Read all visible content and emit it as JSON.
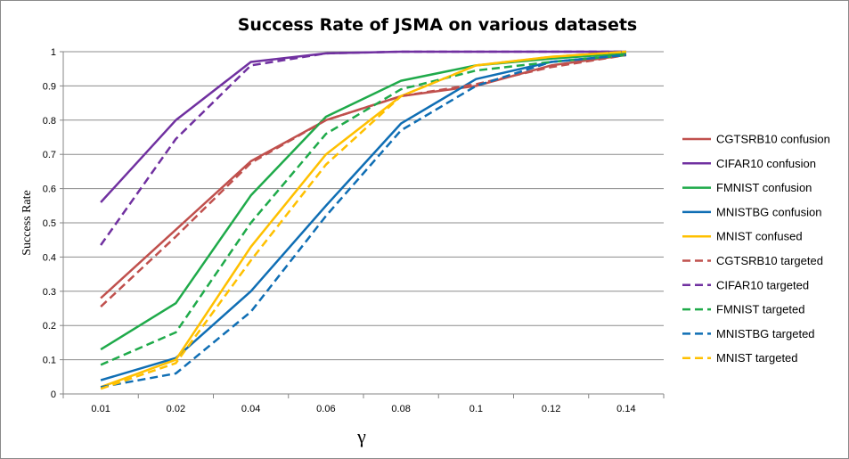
{
  "chart_data": {
    "type": "line",
    "title": "Success Rate of JSMA on various datasets",
    "xlabel": "γ",
    "ylabel": "Success Rate",
    "categories": [
      "0.01",
      "0.02",
      "0.04",
      "0.06",
      "0.08",
      "0.1",
      "0.12",
      "0.14"
    ],
    "ylim": [
      0,
      1
    ],
    "yticks": [
      "0",
      "0.1",
      "0.2",
      "0.3",
      "0.4",
      "0.5",
      "0.6",
      "0.7",
      "0.8",
      "0.9",
      "1"
    ],
    "grid": true,
    "legend_position": "right",
    "series": [
      {
        "name": "CGTSRB10 confusion",
        "color": "#c0504d",
        "dash": false,
        "values": [
          0.28,
          0.48,
          0.68,
          0.8,
          0.87,
          0.9,
          0.96,
          0.99
        ]
      },
      {
        "name": "CIFAR10 confusion",
        "color": "#7030a0",
        "dash": false,
        "values": [
          0.56,
          0.8,
          0.97,
          0.995,
          1.0,
          1.0,
          1.0,
          1.0
        ]
      },
      {
        "name": "FMNIST confusion",
        "color": "#1faa4a",
        "dash": false,
        "values": [
          0.13,
          0.265,
          0.58,
          0.81,
          0.915,
          0.96,
          0.98,
          0.995
        ]
      },
      {
        "name": "MNISTBG confusion",
        "color": "#0f6eb4",
        "dash": false,
        "values": [
          0.04,
          0.105,
          0.3,
          0.55,
          0.79,
          0.92,
          0.97,
          0.99
        ]
      },
      {
        "name": "MNIST confused",
        "color": "#ffc000",
        "dash": false,
        "values": [
          0.02,
          0.1,
          0.43,
          0.7,
          0.87,
          0.96,
          0.985,
          1.0
        ]
      },
      {
        "name": "CGTSRB10 targeted",
        "color": "#c0504d",
        "dash": true,
        "values": [
          0.255,
          0.46,
          0.675,
          0.8,
          0.87,
          0.905,
          0.955,
          0.99
        ]
      },
      {
        "name": "CIFAR10 targeted",
        "color": "#7030a0",
        "dash": true,
        "values": [
          0.435,
          0.745,
          0.96,
          0.995,
          1.0,
          1.0,
          1.0,
          1.0
        ]
      },
      {
        "name": "FMNIST targeted",
        "color": "#1faa4a",
        "dash": true,
        "values": [
          0.085,
          0.18,
          0.5,
          0.76,
          0.89,
          0.945,
          0.97,
          0.99
        ]
      },
      {
        "name": "MNISTBG targeted",
        "color": "#0f6eb4",
        "dash": true,
        "values": [
          0.02,
          0.06,
          0.24,
          0.52,
          0.77,
          0.9,
          0.97,
          0.99
        ]
      },
      {
        "name": "MNIST targeted",
        "color": "#ffc000",
        "dash": true,
        "values": [
          0.015,
          0.09,
          0.39,
          0.67,
          0.87,
          0.96,
          0.985,
          1.0
        ]
      }
    ]
  }
}
